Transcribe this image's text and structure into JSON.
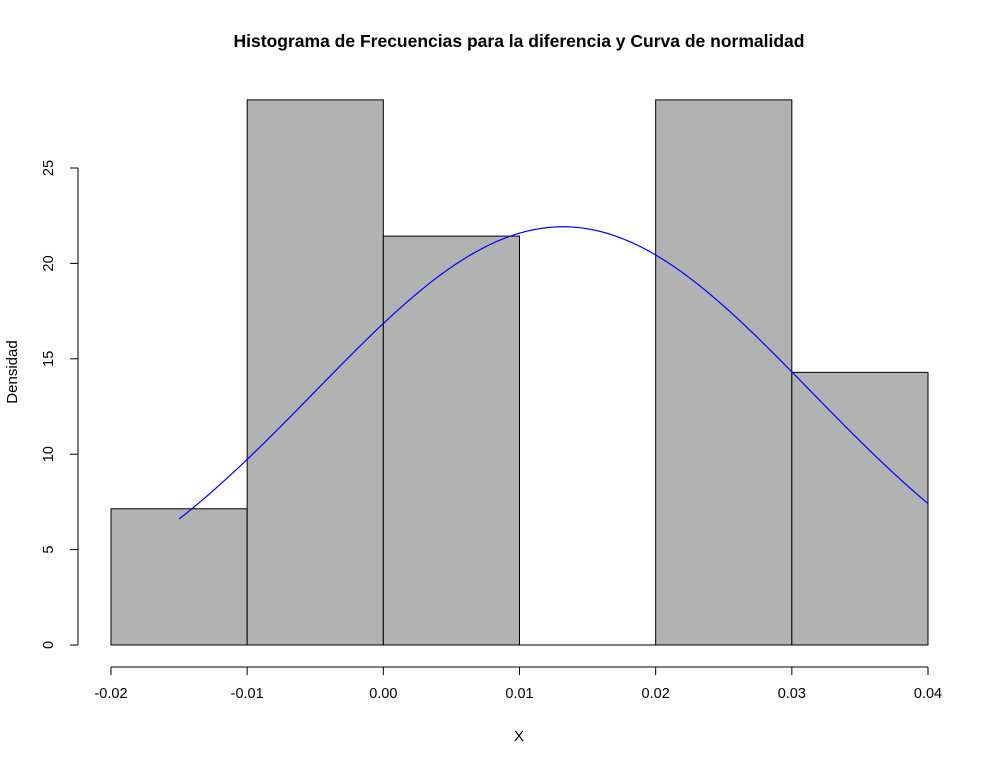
{
  "chart_data": {
    "type": "bar",
    "title": "Histograma de Frecuencias para la diferencia y Curva de normalidad",
    "xlabel": "X",
    "ylabel": "Densidad",
    "xlim": [
      -0.02,
      0.04
    ],
    "ylim": [
      0,
      28.57
    ],
    "x_ticks": [
      -0.02,
      -0.01,
      0.0,
      0.01,
      0.02,
      0.03,
      0.04
    ],
    "x_tick_labels": [
      "-0.02",
      "-0.01",
      "0.00",
      "0.01",
      "0.02",
      "0.03",
      "0.04"
    ],
    "y_ticks": [
      0,
      5,
      10,
      15,
      20,
      25
    ],
    "y_tick_labels": [
      "0",
      "5",
      "10",
      "15",
      "20",
      "25"
    ],
    "bins": [
      {
        "from": -0.02,
        "to": -0.01,
        "density": 7.14
      },
      {
        "from": -0.01,
        "to": 0.0,
        "density": 28.57
      },
      {
        "from": 0.0,
        "to": 0.01,
        "density": 21.43
      },
      {
        "from": 0.01,
        "to": 0.02,
        "density": 0.0
      },
      {
        "from": 0.02,
        "to": 0.03,
        "density": 28.57
      },
      {
        "from": 0.03,
        "to": 0.04,
        "density": 14.29
      }
    ],
    "bar_color": "#b2b2b2",
    "bar_border_color": "#000000",
    "curve": {
      "type": "normal-density",
      "mean": 0.0132,
      "sd": 0.0182,
      "x_from": -0.015,
      "x_to": 0.04,
      "color": "#0000ff"
    },
    "grid": false,
    "legend": "none"
  }
}
